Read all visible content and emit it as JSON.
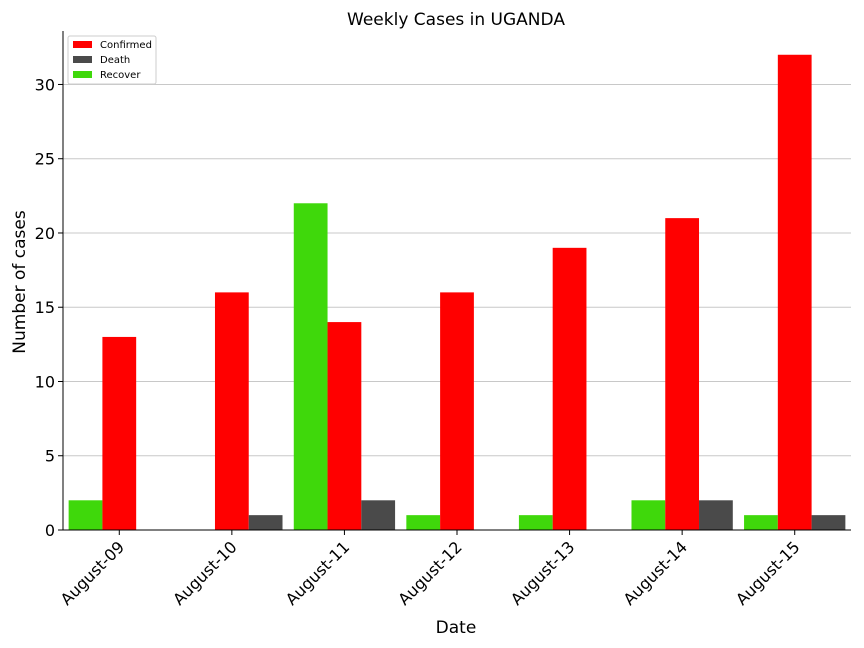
{
  "chart_data": {
    "type": "bar",
    "title": "Weekly Cases in UGANDA",
    "xlabel": "Date",
    "ylabel": "Number of cases",
    "categories": [
      "August-09",
      "August-10",
      "August-11",
      "August-12",
      "August-13",
      "August-14",
      "August-15"
    ],
    "series": [
      {
        "name": "Recover",
        "color": "#3fd80b",
        "values": [
          2,
          0,
          22,
          1,
          1,
          2,
          1
        ]
      },
      {
        "name": "Confirmed",
        "color": "#ff0000",
        "values": [
          13,
          16,
          14,
          16,
          19,
          21,
          32
        ]
      },
      {
        "name": "Death",
        "color": "#4a4a4a",
        "values": [
          0,
          1,
          2,
          0,
          0,
          2,
          1
        ]
      }
    ],
    "legend_order": [
      "Confirmed",
      "Death",
      "Recover"
    ],
    "legend_position": "top-left",
    "ylim": [
      0,
      33.6
    ],
    "yticks": [
      0,
      5,
      10,
      15,
      20,
      25,
      30
    ],
    "grid": "horizontal"
  }
}
